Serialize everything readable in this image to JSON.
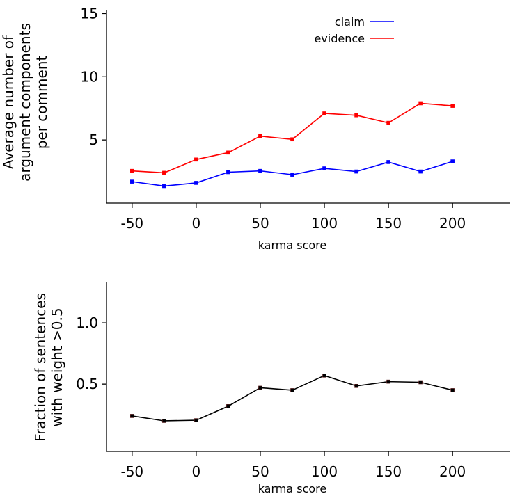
{
  "chart_data": [
    {
      "type": "line",
      "x": [
        -50,
        -25,
        0,
        25,
        50,
        75,
        100,
        125,
        150,
        175,
        200
      ],
      "series": [
        {
          "name": "claim",
          "color": "#0000ff",
          "values": [
            1.7,
            1.35,
            1.6,
            2.45,
            2.55,
            2.25,
            2.75,
            2.5,
            3.25,
            2.5,
            3.3
          ]
        },
        {
          "name": "evidence",
          "color": "#ff0000",
          "values": [
            2.55,
            2.4,
            3.45,
            4.0,
            5.3,
            5.05,
            7.1,
            6.95,
            6.35,
            7.9,
            7.7
          ]
        }
      ],
      "xlabel": "karma score",
      "ylabel_lines": [
        "Average number of",
        "argument components",
        "per comment"
      ],
      "xticks": [
        -50,
        0,
        50,
        100,
        150,
        200
      ],
      "yticks": [
        5,
        10,
        15
      ],
      "xlim": [
        -70,
        245
      ],
      "ylim": [
        0,
        15.3
      ],
      "legend_position": "top-right"
    },
    {
      "type": "line",
      "x": [
        -50,
        -25,
        0,
        25,
        50,
        75,
        100,
        125,
        150,
        175,
        200
      ],
      "series": [
        {
          "color": "#000000",
          "values": [
            0.24,
            0.2,
            0.205,
            0.32,
            0.47,
            0.45,
            0.57,
            0.485,
            0.52,
            0.515,
            0.45
          ]
        }
      ],
      "xlabel": "karma score",
      "ylabel_lines": [
        "Fraction of sentences",
        "with weight >0.5"
      ],
      "xticks": [
        -50,
        0,
        50,
        100,
        150,
        200
      ],
      "yticks": [
        0.5,
        1.0
      ],
      "xlim": [
        -70,
        245
      ],
      "ylim": [
        -0.05,
        1.33
      ],
      "legend_position": "none"
    }
  ]
}
